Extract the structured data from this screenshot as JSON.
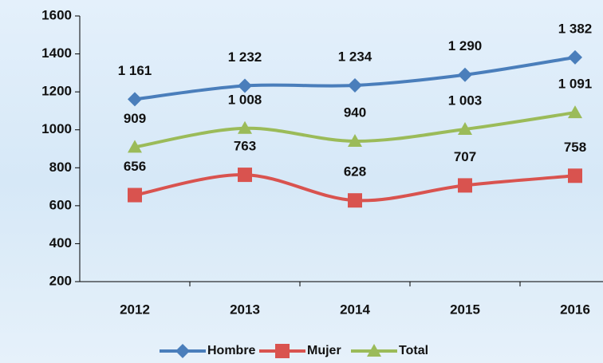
{
  "chart_data": {
    "type": "line",
    "categories": [
      "2012",
      "2013",
      "2014",
      "2015",
      "2016"
    ],
    "series": [
      {
        "name": "Hombre",
        "color": "#4a7ebb",
        "marker": "diamond",
        "values": [
          1161,
          1232,
          1234,
          1290,
          1382
        ],
        "value_labels": [
          "1 161",
          "1 232",
          "1 234",
          "1 290",
          "1 382"
        ]
      },
      {
        "name": "Mujer",
        "color": "#d9534f",
        "marker": "square",
        "values": [
          656,
          763,
          628,
          707,
          758
        ]
      },
      {
        "name": "Total",
        "color": "#9bbb59",
        "marker": "triangle",
        "values": [
          909,
          1008,
          940,
          1003,
          1091
        ],
        "value_labels": [
          "909",
          "1 008",
          "940",
          "1 003",
          "1 091"
        ]
      }
    ],
    "ylim": [
      200,
      1600
    ],
    "yticks": [
      200,
      400,
      600,
      800,
      1000,
      1200,
      1400,
      1600
    ],
    "smooth": true,
    "legend": "bottom"
  }
}
